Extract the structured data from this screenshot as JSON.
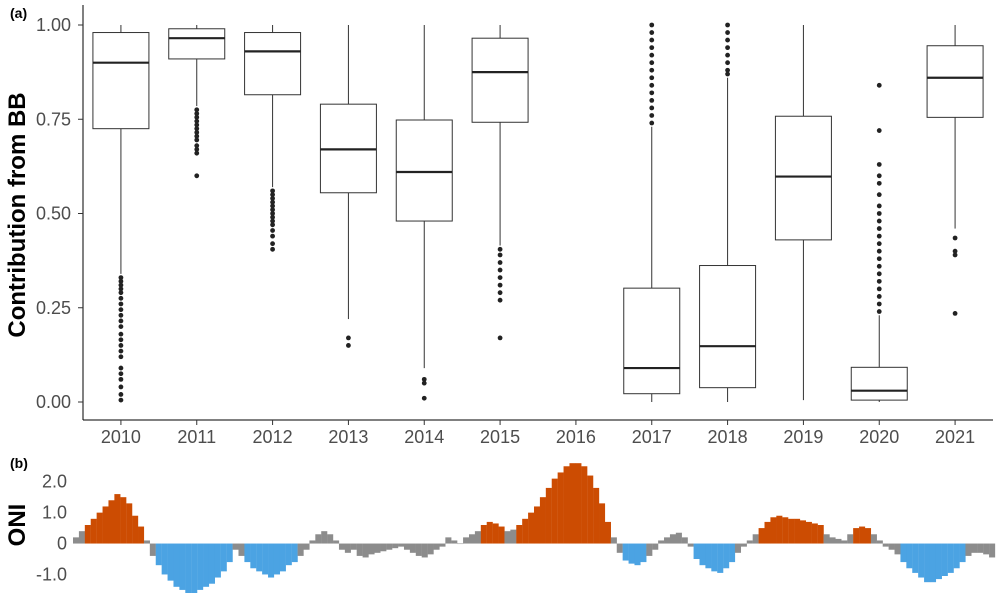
{
  "chart_data": [
    {
      "type": "box",
      "panel_label": "(a)",
      "ylabel": "Contribution from BB",
      "ylim": [
        0,
        1
      ],
      "yticks": [
        "0.00",
        "0.25",
        "0.50",
        "0.75",
        "1.00"
      ],
      "ytick_values": [
        0,
        0.25,
        0.5,
        0.75,
        1.0
      ],
      "grid": false,
      "categories": [
        "2010",
        "2011",
        "2012",
        "2013",
        "2014",
        "2015",
        "2016",
        "2017",
        "2018",
        "2019",
        "2020",
        "2021"
      ],
      "boxes": [
        {
          "year": "2010",
          "min": 0.34,
          "q1": 0.725,
          "median": 0.9,
          "q3": 0.98,
          "max": 1.0,
          "outliers": [
            0.005,
            0.02,
            0.04,
            0.06,
            0.075,
            0.09,
            0.12,
            0.135,
            0.15,
            0.165,
            0.18,
            0.2,
            0.215,
            0.23,
            0.245,
            0.26,
            0.275,
            0.29,
            0.3,
            0.31,
            0.32,
            0.33
          ]
        },
        {
          "year": "2011",
          "min": 0.785,
          "q1": 0.91,
          "median": 0.965,
          "q3": 0.99,
          "max": 1.0,
          "outliers": [
            0.6,
            0.66,
            0.67,
            0.68,
            0.695,
            0.705,
            0.715,
            0.725,
            0.735,
            0.745,
            0.755,
            0.765,
            0.775
          ]
        },
        {
          "year": "2012",
          "min": 0.57,
          "q1": 0.815,
          "median": 0.93,
          "q3": 0.98,
          "max": 1.0,
          "outliers": [
            0.405,
            0.42,
            0.44,
            0.455,
            0.47,
            0.48,
            0.49,
            0.5,
            0.51,
            0.52,
            0.53,
            0.54,
            0.55,
            0.56
          ]
        },
        {
          "year": "2013",
          "min": 0.22,
          "q1": 0.555,
          "median": 0.67,
          "q3": 0.79,
          "max": 1.0,
          "outliers": [
            0.15,
            0.17
          ]
        },
        {
          "year": "2014",
          "min": 0.09,
          "q1": 0.48,
          "median": 0.61,
          "q3": 0.748,
          "max": 1.0,
          "outliers": [
            0.01,
            0.05,
            0.06
          ]
        },
        {
          "year": "2015",
          "min": 0.415,
          "q1": 0.742,
          "median": 0.875,
          "q3": 0.965,
          "max": 1.0,
          "outliers": [
            0.17,
            0.27,
            0.29,
            0.31,
            0.33,
            0.35,
            0.37,
            0.39,
            0.405
          ]
        },
        {
          "year": "2016"
        },
        {
          "year": "2017",
          "min": 0.0,
          "q1": 0.022,
          "median": 0.09,
          "q3": 0.302,
          "max": 0.73,
          "outliers": [
            0.74,
            0.76,
            0.78,
            0.8,
            0.82,
            0.84,
            0.86,
            0.88,
            0.9,
            0.92,
            0.94,
            0.96,
            0.98,
            1.0
          ]
        },
        {
          "year": "2018",
          "min": 0.0,
          "q1": 0.038,
          "median": 0.148,
          "q3": 0.362,
          "max": 0.86,
          "outliers": [
            0.87,
            0.88,
            0.9,
            0.92,
            0.94,
            0.96,
            0.98,
            1.0
          ]
        },
        {
          "year": "2019",
          "min": 0.005,
          "q1": 0.43,
          "median": 0.598,
          "q3": 0.758,
          "max": 1.0,
          "outliers": []
        },
        {
          "year": "2020",
          "min": 0.0,
          "q1": 0.005,
          "median": 0.03,
          "q3": 0.092,
          "max": 0.23,
          "outliers": [
            0.24,
            0.26,
            0.28,
            0.3,
            0.32,
            0.34,
            0.36,
            0.38,
            0.4,
            0.42,
            0.44,
            0.46,
            0.48,
            0.5,
            0.52,
            0.55,
            0.58,
            0.6,
            0.63,
            0.72,
            0.84
          ]
        },
        {
          "year": "2021",
          "min": 0.46,
          "q1": 0.755,
          "median": 0.86,
          "q3": 0.945,
          "max": 1.0,
          "outliers": [
            0.235,
            0.39,
            0.4,
            0.435
          ]
        }
      ]
    },
    {
      "type": "bar",
      "panel_label": "(b)",
      "ylabel": "ONI",
      "ylim": [
        -1.6,
        2.8
      ],
      "yticks": [
        "-1.0",
        "0",
        "1.0",
        "2.0"
      ],
      "ytick_values": [
        -1.0,
        0,
        1.0,
        2.0
      ],
      "colors": {
        "el_nino": "#cc4c02",
        "la_nina": "#4ba3e3",
        "neutral": "#8c8c8c"
      },
      "color_rule": "orange when >= 0.5, blue when <= -0.5, grey otherwise",
      "x_start": "2010-01",
      "frequency": "monthly",
      "values": [
        0.2,
        0.4,
        0.6,
        0.8,
        1.0,
        1.2,
        1.4,
        1.6,
        1.5,
        1.3,
        0.9,
        0.55,
        0.1,
        -0.4,
        -0.7,
        -1.0,
        -1.2,
        -1.4,
        -1.5,
        -1.6,
        -1.6,
        -1.5,
        -1.4,
        -1.3,
        -1.1,
        -0.9,
        -0.6,
        -0.2,
        -0.4,
        -0.6,
        -0.8,
        -0.9,
        -1.0,
        -1.1,
        -1.0,
        -0.9,
        -0.7,
        -0.6,
        -0.4,
        -0.2,
        0.1,
        0.3,
        0.4,
        0.3,
        0.1,
        -0.2,
        -0.3,
        -0.2,
        -0.4,
        -0.45,
        -0.35,
        -0.3,
        -0.25,
        -0.2,
        -0.15,
        -0.1,
        -0.2,
        -0.3,
        -0.4,
        -0.45,
        -0.35,
        -0.2,
        -0.1,
        0.2,
        0.1,
        0.0,
        0.2,
        0.3,
        0.4,
        0.6,
        0.7,
        0.65,
        0.55,
        0.4,
        0.45,
        0.6,
        0.8,
        1.0,
        1.2,
        1.5,
        1.8,
        2.1,
        2.3,
        2.5,
        2.6,
        2.6,
        2.5,
        2.2,
        1.8,
        1.3,
        0.7,
        0.2,
        -0.3,
        -0.55,
        -0.65,
        -0.7,
        -0.6,
        -0.4,
        -0.2,
        0.1,
        0.2,
        0.3,
        0.35,
        0.2,
        -0.1,
        -0.5,
        -0.7,
        -0.8,
        -0.9,
        -0.95,
        -0.8,
        -0.6,
        -0.3,
        -0.1,
        0.1,
        0.3,
        0.5,
        0.7,
        0.85,
        0.9,
        0.85,
        0.8,
        0.8,
        0.75,
        0.7,
        0.65,
        0.6,
        0.3,
        0.2,
        0.15,
        0.1,
        0.3,
        0.5,
        0.55,
        0.5,
        0.3,
        0.1,
        -0.1,
        -0.2,
        -0.35,
        -0.6,
        -0.8,
        -0.95,
        -1.1,
        -1.25,
        -1.25,
        -1.15,
        -1.05,
        -0.95,
        -0.8,
        -0.6,
        -0.4,
        -0.3,
        -0.3,
        -0.35,
        -0.45
      ]
    }
  ]
}
